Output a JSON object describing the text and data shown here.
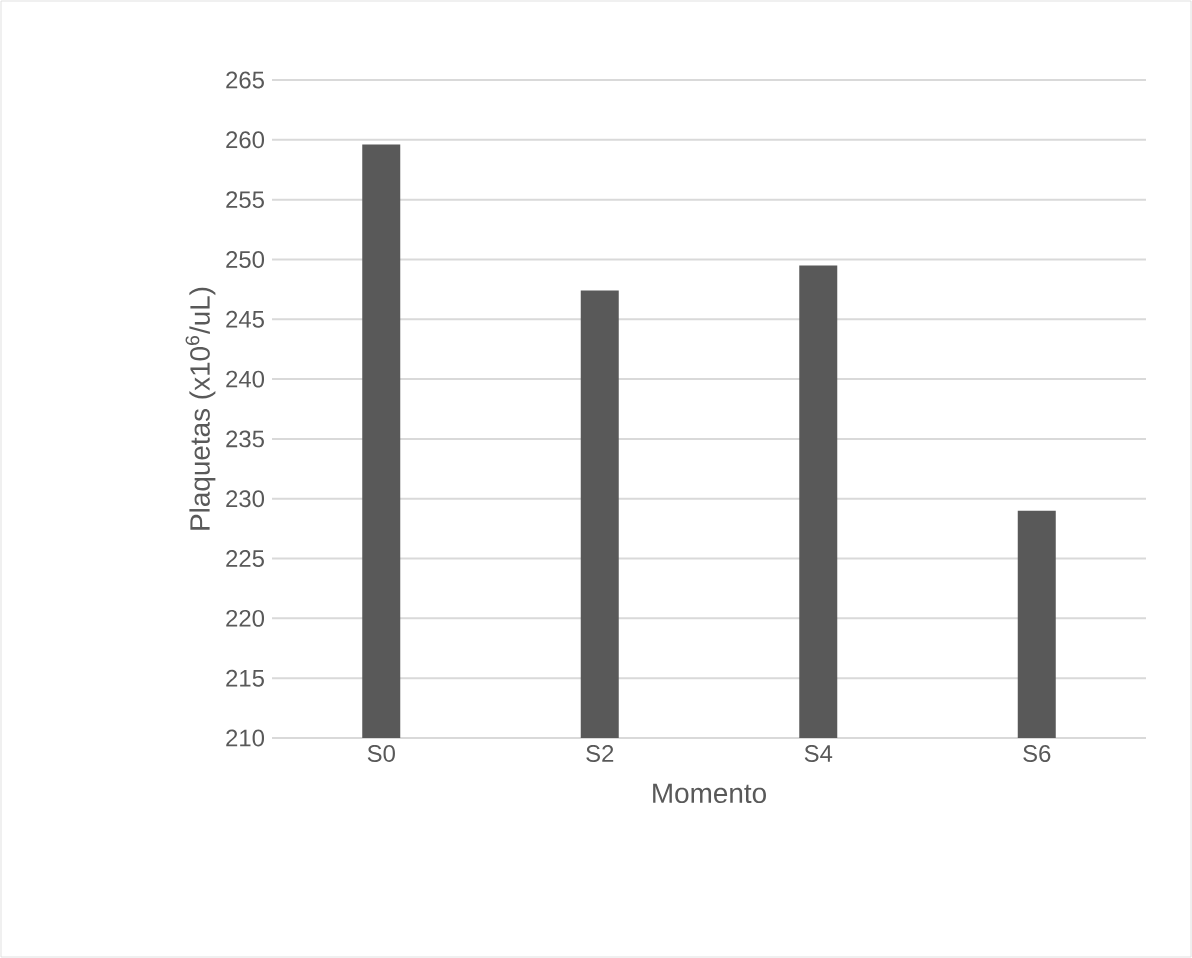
{
  "chart_data": {
    "type": "bar",
    "xlabel": "Momento",
    "ylabel": "Plaquetas (x10$^{6}$/uL)",
    "categories": [
      "S0",
      "S2",
      "S4",
      "S6"
    ],
    "values": [
      259.6,
      247.4,
      249.5,
      229.0
    ],
    "color": "#595959",
    "ylim": [
      210,
      265
    ],
    "yticks": [
      210,
      215,
      220,
      225,
      230,
      235,
      240,
      245,
      250,
      255,
      260,
      265
    ],
    "grid": "y"
  }
}
